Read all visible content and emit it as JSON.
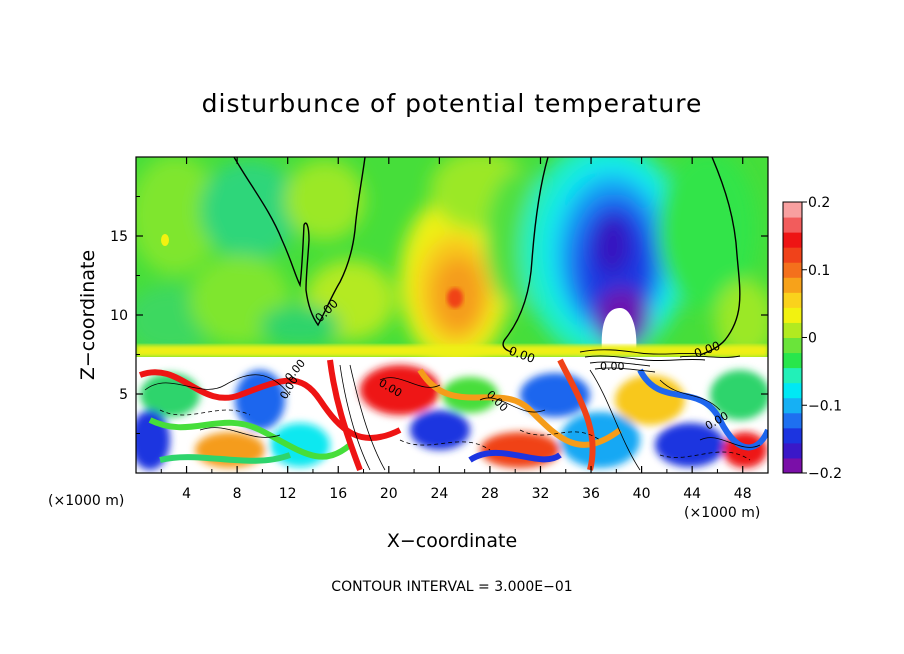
{
  "chart_data": {
    "type": "heatmap",
    "title": "disturbunce of potential temperature",
    "xlabel": "X−coordinate",
    "ylabel": "Z−coordinate",
    "x_unit_left": "(×1000 m)",
    "x_unit_right": "(×1000 m)",
    "xlim": [
      0,
      50
    ],
    "ylim": [
      0,
      20
    ],
    "xticks": [
      4,
      8,
      12,
      16,
      20,
      24,
      28,
      32,
      36,
      40,
      44,
      48
    ],
    "yticks": [
      5,
      10,
      15
    ],
    "colorbar": {
      "min": -0.2,
      "max": 0.2,
      "ticks": [
        -0.2,
        -0.1,
        0,
        0.1,
        0.2
      ],
      "tick_labels": [
        "−0.2",
        "−0.1",
        "0",
        "0.1",
        "0.2"
      ],
      "colors": [
        "#7a0fa8",
        "#3a18c8",
        "#1c34e0",
        "#1e70f0",
        "#16b0f4",
        "#00e8f4",
        "#22f0b8",
        "#28e64c",
        "#6ae43a",
        "#b2ea20",
        "#f2f210",
        "#fad21c",
        "#f7a21a",
        "#f4701c",
        "#f0421a",
        "#ee1414",
        "#f25c5c",
        "#f8a0a0"
      ]
    },
    "contour_interval": "CONTOUR INTERVAL = 3.000E−01",
    "contour_labels": [
      "0.00",
      "0.00",
      "0.00",
      "0.00",
      "0.00",
      "0.00",
      "0.00",
      "0.00",
      "0.00"
    ],
    "layer_boundary_z": 7.3,
    "warm_anomalies": [
      {
        "x": 25,
        "z": 10.8,
        "value": 0.11
      },
      {
        "x": 24,
        "z": 13.5,
        "value": 0.06
      }
    ],
    "cold_anomalies": [
      {
        "x": 38,
        "z": 13,
        "value": -0.15
      },
      {
        "x": 38.2,
        "z": 9.5,
        "value": -0.2
      }
    ],
    "grid": false
  }
}
